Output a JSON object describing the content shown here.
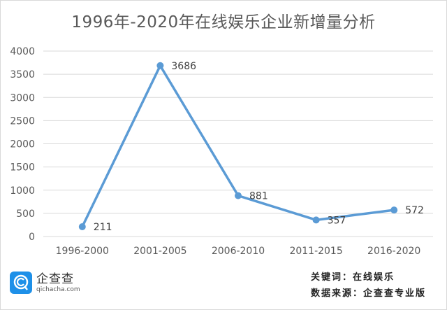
{
  "title": "1996年-2020年在线娱乐企业新增量分析",
  "chart_data": {
    "type": "line",
    "title": "1996年-2020年在线娱乐企业新增量分析",
    "xlabel": "",
    "ylabel": "",
    "categories": [
      "1996-2000",
      "2001-2005",
      "2006-2010",
      "2011-2015",
      "2016-2020"
    ],
    "series": [
      {
        "name": "在线娱乐企业新增量",
        "values": [
          211,
          3686,
          881,
          357,
          572
        ],
        "color": "#5b9bd5"
      }
    ],
    "data_labels": [
      "211",
      "3686",
      "881",
      "357",
      "572"
    ],
    "ylim": [
      0,
      4000
    ],
    "yticks": [
      "0",
      "500",
      "1000",
      "1500",
      "2000",
      "2500",
      "3000",
      "3500",
      "4000"
    ],
    "grid": true,
    "legend": "none"
  },
  "logo": {
    "cn": "企查查",
    "en": "qichacha.com",
    "icon": "qichacha-logo-icon",
    "color": "#1e90e8"
  },
  "footer": {
    "keyword": "关键词：在线娱乐",
    "source": "数据来源：企查查专业版"
  }
}
